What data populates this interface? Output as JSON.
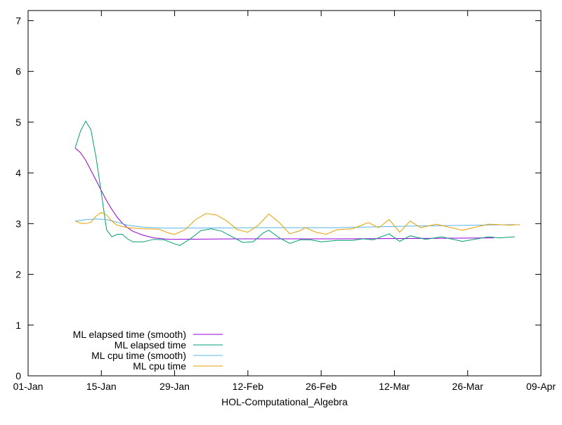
{
  "chart_data": {
    "type": "line",
    "title": "",
    "xlabel": "HOL-Computational_Algebra",
    "ylabel": "",
    "ylim": [
      0,
      7.2
    ],
    "xlim": [
      "01-Jan",
      "09-Apr"
    ],
    "x_ticks": [
      "01-Jan",
      "15-Jan",
      "29-Jan",
      "12-Feb",
      "26-Feb",
      "12-Mar",
      "26-Mar",
      "09-Apr"
    ],
    "y_ticks": [
      "0",
      "1",
      "2",
      "3",
      "4",
      "5",
      "6",
      "7"
    ],
    "grid": false,
    "legend_position": "bottom-left",
    "series": [
      {
        "name": "ML elapsed time (smooth)",
        "color": "#9400d3",
        "x": [
          "10-Jan",
          "11-Jan",
          "12-Jan",
          "13-Jan",
          "14-Jan",
          "15-Jan",
          "16-Jan",
          "17-Jan",
          "18-Jan",
          "19-Jan",
          "20-Jan",
          "21-Jan",
          "23-Jan",
          "25-Jan",
          "28-Jan",
          "10-Feb",
          "01-Mar",
          "20-Mar",
          "31-Mar"
        ],
        "y": [
          4.49,
          4.4,
          4.25,
          4.05,
          3.85,
          3.65,
          3.45,
          3.28,
          3.13,
          3.01,
          2.92,
          2.85,
          2.77,
          2.72,
          2.69,
          2.7,
          2.7,
          2.71,
          2.72
        ]
      },
      {
        "name": "ML elapsed time",
        "color": "#009e73",
        "x": [
          "10-Jan",
          "11-Jan",
          "12-Jan",
          "13-Jan",
          "14-Jan",
          "15-Jan",
          "16-Jan",
          "17-Jan",
          "18-Jan",
          "19-Jan",
          "20-Jan",
          "21-Jan",
          "23-Jan",
          "25-Jan",
          "27-Jan",
          "29-Jan",
          "30-Jan",
          "01-Feb",
          "03-Feb",
          "05-Feb",
          "07-Feb",
          "09-Feb",
          "11-Feb",
          "13-Feb",
          "15-Feb",
          "16-Feb",
          "18-Feb",
          "20-Feb",
          "22-Feb",
          "24-Feb",
          "26-Feb",
          "01-Mar",
          "04-Mar",
          "06-Mar",
          "08-Mar",
          "11-Mar",
          "13-Mar",
          "15-Mar",
          "18-Mar",
          "21-Mar",
          "25-Mar",
          "30-Mar",
          "01-Apr",
          "04-Apr"
        ],
        "y": [
          4.49,
          4.82,
          5.02,
          4.85,
          4.3,
          3.6,
          2.88,
          2.74,
          2.79,
          2.79,
          2.7,
          2.64,
          2.64,
          2.69,
          2.68,
          2.6,
          2.57,
          2.7,
          2.86,
          2.9,
          2.85,
          2.74,
          2.63,
          2.64,
          2.82,
          2.87,
          2.72,
          2.61,
          2.68,
          2.68,
          2.64,
          2.67,
          2.67,
          2.7,
          2.68,
          2.8,
          2.65,
          2.76,
          2.69,
          2.74,
          2.65,
          2.74,
          2.72,
          2.74
        ]
      },
      {
        "name": "ML cpu time (smooth)",
        "color": "#56b4e9",
        "x": [
          "10-Jan",
          "12-Jan",
          "14-Jan",
          "16-Jan",
          "18-Jan",
          "20-Jan",
          "23-Jan",
          "27-Jan",
          "15-Feb",
          "01-Mar",
          "15-Mar",
          "04-Apr"
        ],
        "y": [
          3.05,
          3.08,
          3.09,
          3.08,
          3.03,
          2.97,
          2.93,
          2.91,
          2.92,
          2.92,
          2.95,
          2.98
        ]
      },
      {
        "name": "ML cpu time",
        "color": "#e69f00",
        "x": [
          "10-Jan",
          "11-Jan",
          "12-Jan",
          "13-Jan",
          "14-Jan",
          "15-Jan",
          "16-Jan",
          "17-Jan",
          "18-Jan",
          "20-Jan",
          "23-Jan",
          "26-Jan",
          "28-Jan",
          "29-Jan",
          "31-Jan",
          "02-Feb",
          "04-Feb",
          "06-Feb",
          "08-Feb",
          "10-Feb",
          "12-Feb",
          "14-Feb",
          "16-Feb",
          "18-Feb",
          "20-Feb",
          "22-Feb",
          "23-Feb",
          "25-Feb",
          "27-Feb",
          "01-Mar",
          "04-Mar",
          "07-Mar",
          "09-Mar",
          "11-Mar",
          "13-Mar",
          "15-Mar",
          "17-Mar",
          "20-Mar",
          "25-Mar",
          "30-Mar",
          "03-Apr",
          "05-Apr"
        ],
        "y": [
          3.05,
          3.01,
          3.0,
          3.03,
          3.15,
          3.22,
          3.17,
          3.05,
          2.97,
          2.92,
          2.9,
          2.89,
          2.81,
          2.79,
          2.88,
          3.08,
          3.2,
          3.17,
          3.05,
          2.88,
          2.83,
          2.97,
          3.19,
          3.02,
          2.8,
          2.86,
          2.92,
          2.83,
          2.79,
          2.88,
          2.9,
          3.02,
          2.92,
          3.08,
          2.83,
          3.05,
          2.92,
          2.99,
          2.87,
          2.99,
          2.97,
          2.98
        ]
      }
    ]
  }
}
